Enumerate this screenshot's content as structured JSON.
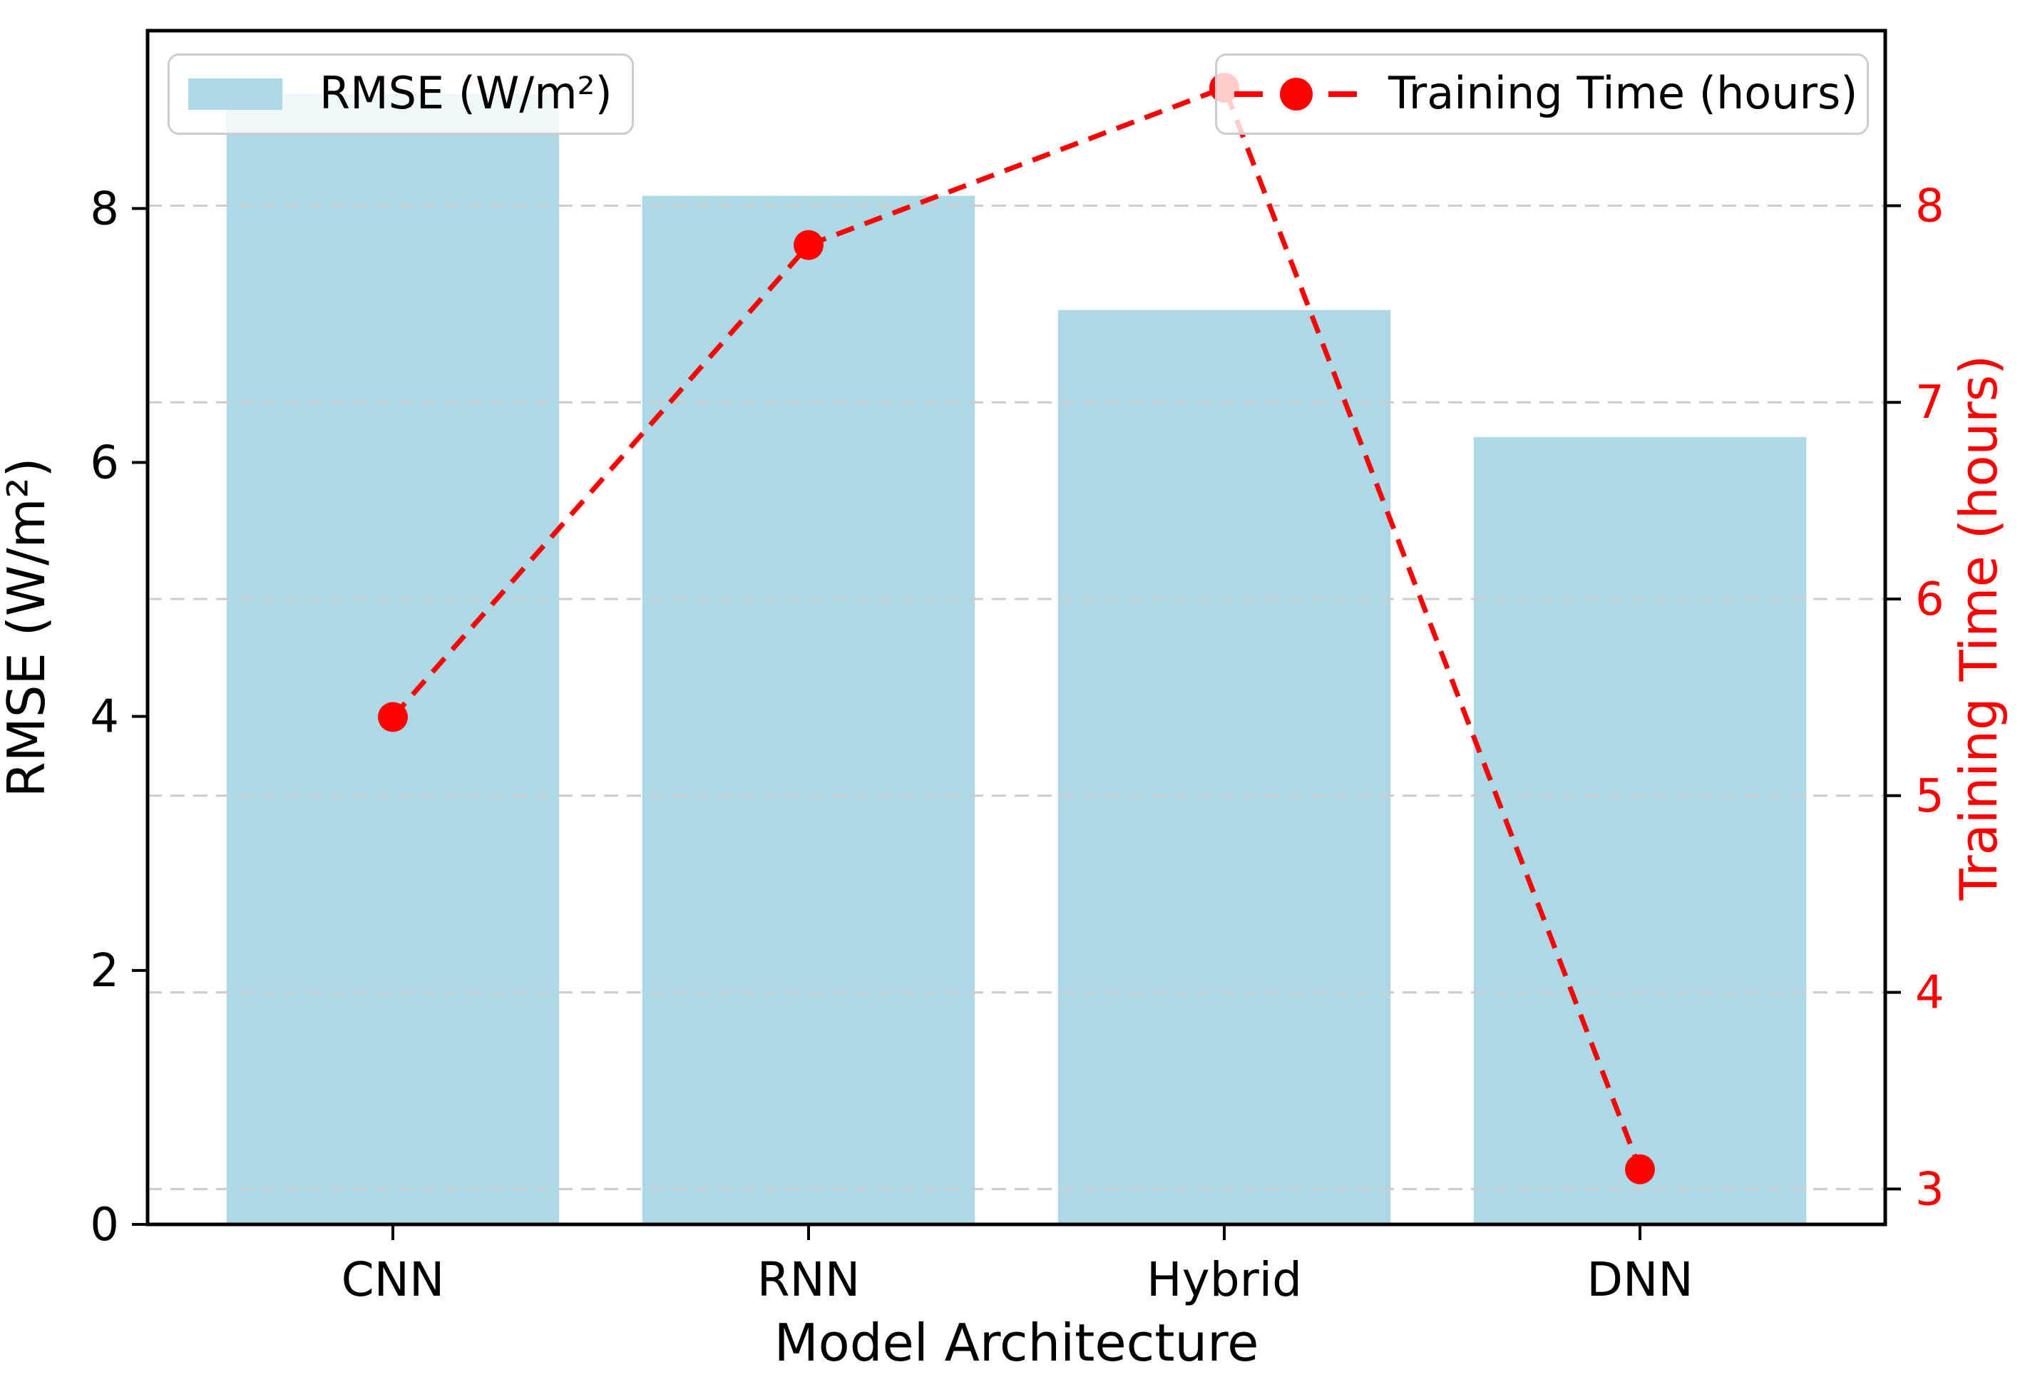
{
  "figure": {
    "xlabel": "Model Architecture",
    "ylabel_left": "RMSE (W/m²)",
    "ylabel_right": "Training Time (hours)"
  },
  "colors": {
    "bar": "#ADD8E6",
    "line": "#FF0000",
    "grid": "#cccccc",
    "axis": "#000000",
    "right_tick_text": "#FF0000",
    "legend_border": "#cccccc"
  },
  "chart_data": {
    "type": "bar+line",
    "categories": [
      "CNN",
      "RNN",
      "Hybrid",
      "DNN"
    ],
    "series": [
      {
        "name": "RMSE (W/m²)",
        "type": "bar",
        "axis": "left",
        "values": [
          8.9,
          8.1,
          7.2,
          6.2
        ]
      },
      {
        "name": "Training Time (hours)",
        "type": "line",
        "axis": "right",
        "values": [
          5.4,
          7.8,
          8.6,
          3.1
        ],
        "linestyle": "dashed",
        "marker": "circle"
      }
    ],
    "title": "",
    "xlabel": "Model Architecture",
    "ylabel_left": "RMSE (W/m²)",
    "ylabel_right": "Training Time (hours)",
    "ylim_left": [
      0,
      9.4
    ],
    "ylim_right": [
      2.82,
      8.89
    ],
    "yticks_left": [
      0,
      2,
      4,
      6,
      8
    ],
    "yticks_right": [
      3,
      4,
      5,
      6,
      7,
      8
    ],
    "grid": {
      "axis": "right-y",
      "style": "dashed",
      "on": true
    },
    "legend": [
      {
        "label": "RMSE (W/m²)",
        "position": "upper left",
        "swatch": "bar"
      },
      {
        "label": "Training Time (hours)",
        "position": "upper right",
        "swatch": "line-marker"
      }
    ]
  }
}
